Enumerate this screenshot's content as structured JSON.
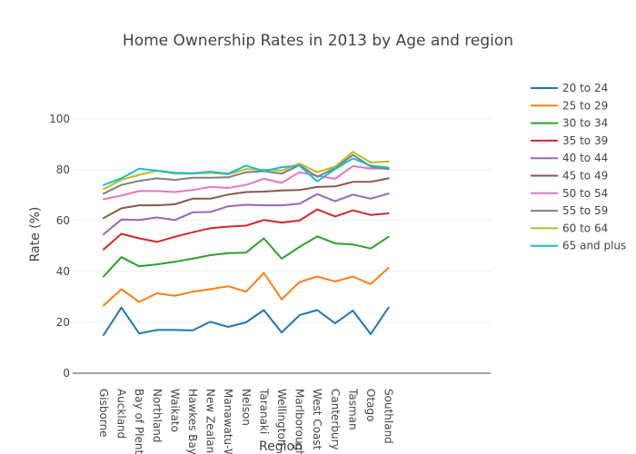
{
  "chart_data": {
    "type": "line",
    "title": "Home Ownership Rates in 2013 by Age and region",
    "xlabel": "Region",
    "ylabel": "Rate (%)",
    "ylim": [
      0,
      111
    ],
    "yticks": [
      0,
      20,
      40,
      60,
      80,
      100
    ],
    "grid": true,
    "legend_position": "right",
    "categories": [
      "Gisborne",
      "Auckland",
      "Bay of Plenty",
      "Northland",
      "Waikato",
      "Hawkes Bay",
      "New Zealand",
      "Manawatu-Wanganui",
      "Nelson",
      "Taranaki",
      "Wellington",
      "Marlborough",
      "West Coast",
      "Canterbury",
      "Tasman",
      "Otago",
      "Southland"
    ],
    "x_tick_labels": [
      "Gisborne",
      "Auckland",
      "Bay of Plenty",
      "Northland",
      "Waikato",
      "Hawkes Bay",
      "New Zealand",
      "Manawatu-W",
      "Nelson",
      "Taranaki",
      "Wellington",
      "Marlborough",
      "West Coast",
      "Canterbury",
      "Tasman",
      "Otago",
      "Southland"
    ],
    "series": [
      {
        "name": "20 to 24",
        "color": "#1f77b4",
        "values": [
          15,
          25.8,
          15.6,
          17,
          17,
          16.8,
          20.2,
          18.2,
          20,
          24.8,
          16,
          22.8,
          24.8,
          19.6,
          24.6,
          15.4,
          25.8
        ]
      },
      {
        "name": "25 to 29",
        "color": "#ff7f0e",
        "values": [
          26.6,
          33,
          28,
          31.4,
          30.4,
          32,
          33,
          34.2,
          32,
          39.4,
          29,
          35.8,
          38,
          36,
          38,
          35,
          41.4
        ]
      },
      {
        "name": "30 to 34",
        "color": "#2ca02c",
        "values": [
          38,
          45.6,
          42,
          42.8,
          43.8,
          45,
          46.4,
          47.2,
          47.4,
          53,
          45,
          49.6,
          53.8,
          51,
          50.6,
          49,
          53.6
        ]
      },
      {
        "name": "35 to 39",
        "color": "#d62728",
        "values": [
          48.6,
          54.8,
          53,
          51.6,
          53.6,
          55.4,
          57,
          57.6,
          58,
          60.2,
          59.2,
          60,
          64.4,
          61.6,
          64,
          62.2,
          62.8
        ]
      },
      {
        "name": "40 to 44",
        "color": "#9467bd",
        "values": [
          54.6,
          60.4,
          60.2,
          61.2,
          60.2,
          63.2,
          63.4,
          65.6,
          66.2,
          66,
          66,
          66.6,
          70.4,
          67.6,
          70.2,
          68.6,
          70.6
        ]
      },
      {
        "name": "45 to 49",
        "color": "#8c564b",
        "values": [
          61,
          64.8,
          66,
          66,
          66.4,
          68.6,
          68.6,
          70.2,
          71.2,
          71.4,
          71.8,
          72,
          73.2,
          73.4,
          75.2,
          75.2,
          76.6
        ]
      },
      {
        "name": "50 to 54",
        "color": "#e377c2",
        "values": [
          68.4,
          69.8,
          71.6,
          71.6,
          71.2,
          72,
          73.2,
          72.8,
          74,
          76.4,
          74.8,
          79,
          77.6,
          76.4,
          81.4,
          80.4,
          80.6
        ]
      },
      {
        "name": "55 to 59",
        "color": "#7f7f7f",
        "values": [
          70.6,
          74,
          75.6,
          76.6,
          76,
          76.8,
          76.8,
          77,
          79,
          79.4,
          78.4,
          81.8,
          77.2,
          80.6,
          85.8,
          81.2,
          80.2
        ]
      },
      {
        "name": "60 to 64",
        "color": "#bcbd22",
        "values": [
          72.4,
          76,
          78,
          79.6,
          78.4,
          78.4,
          78.8,
          78.2,
          80.2,
          80,
          79.6,
          82.4,
          79,
          81.2,
          87,
          82.8,
          83.2
        ]
      },
      {
        "name": "65 and plus",
        "color": "#17becf",
        "values": [
          74,
          76.6,
          80.4,
          79.6,
          78.8,
          78.6,
          79.2,
          78.4,
          81.6,
          79.4,
          81,
          81.6,
          75.4,
          80.2,
          84.4,
          81.6,
          80.8
        ]
      }
    ]
  }
}
